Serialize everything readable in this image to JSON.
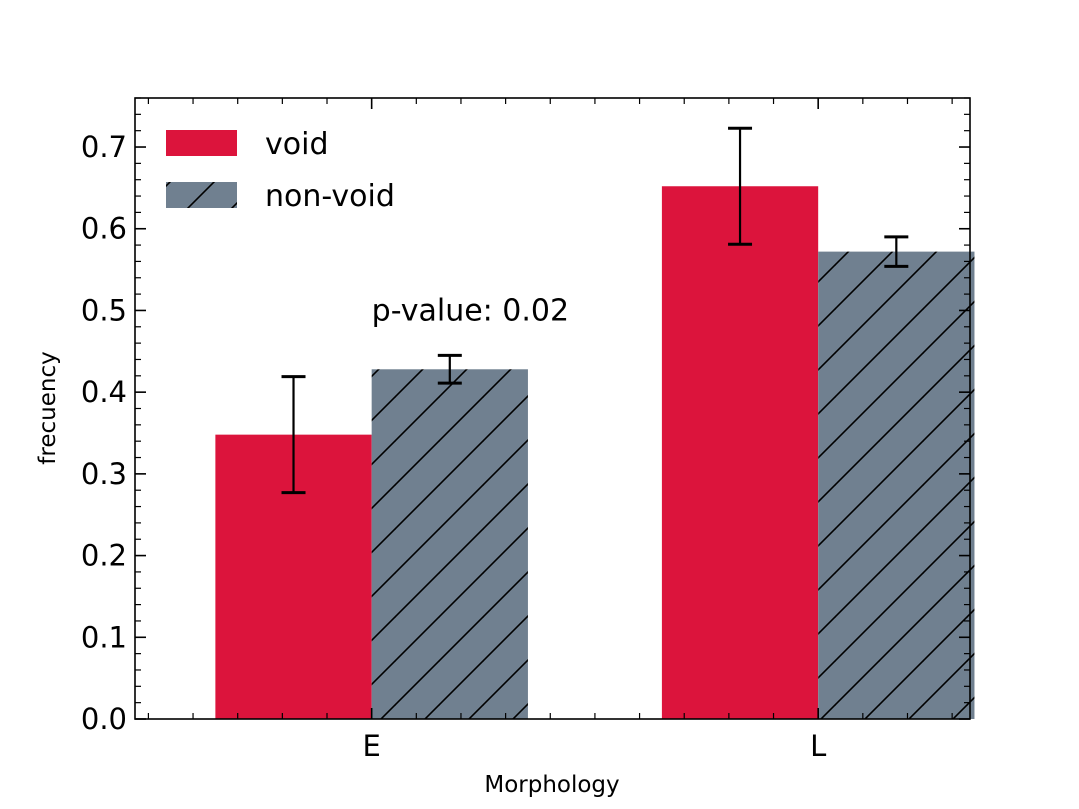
{
  "chart_data": {
    "type": "bar",
    "title": "",
    "xlabel": "Morphology",
    "ylabel": "frecuency",
    "categories": [
      "E",
      "L"
    ],
    "ylim": [
      0.0,
      0.76
    ],
    "yticks": [
      "0.0",
      "0.1",
      "0.2",
      "0.3",
      "0.4",
      "0.5",
      "0.6",
      "0.7"
    ],
    "grid": false,
    "legend_position": "top-left",
    "series": [
      {
        "name": "void",
        "color": "#dc143c",
        "hatch": false,
        "values": [
          0.348,
          0.652
        ],
        "errors": [
          0.071,
          0.071
        ]
      },
      {
        "name": "non-void",
        "color": "#708090",
        "hatch": true,
        "values": [
          0.428,
          0.572
        ],
        "errors": [
          0.017,
          0.018
        ]
      }
    ],
    "annotations": [
      {
        "text": "p-value: 0.02",
        "x_category": "E",
        "y": 0.5
      }
    ]
  }
}
